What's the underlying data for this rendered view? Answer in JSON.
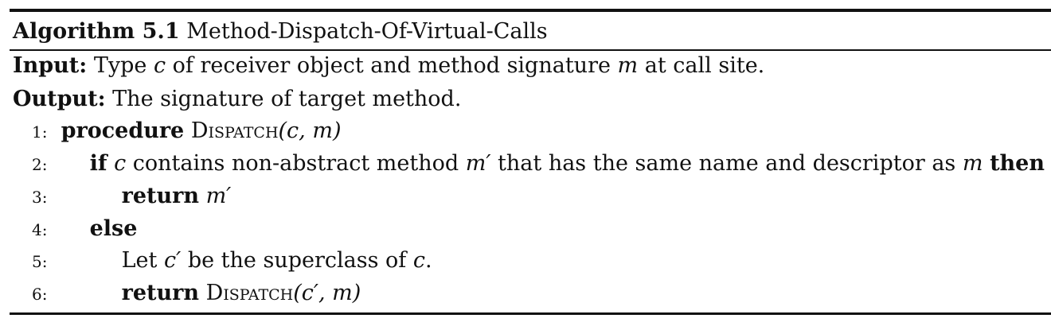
{
  "algorithm": {
    "label": "Algorithm 5.1",
    "title": "Method-Dispatch-Of-Virtual-Calls"
  },
  "io": {
    "input_label": "Input:",
    "input_pre": "Type",
    "input_c": "c",
    "input_mid": "of receiver object and method signature",
    "input_m": "m",
    "input_post": "at call site.",
    "output_label": "Output:",
    "output_text": "The signature of target method."
  },
  "lines": [
    {
      "num": "1:",
      "kw": "procedure",
      "proc": "Dispatch",
      "args": "(c, m)"
    },
    {
      "num": "2:",
      "kw": "if",
      "c": "c",
      "text": "contains non-abstract method",
      "mp": "m′",
      "text2": "that has the same name and descriptor as",
      "m": "m",
      "kw2": "then"
    },
    {
      "num": "3:",
      "kw": "return",
      "val": "m′"
    },
    {
      "num": "4:",
      "kw": "else"
    },
    {
      "num": "5:",
      "text": "Let",
      "cp": "c′",
      "text2": "be the superclass of",
      "c": "c",
      "text3": "."
    },
    {
      "num": "6:",
      "kw": "return",
      "proc": "Dispatch",
      "args": "(c′, m)"
    }
  ]
}
